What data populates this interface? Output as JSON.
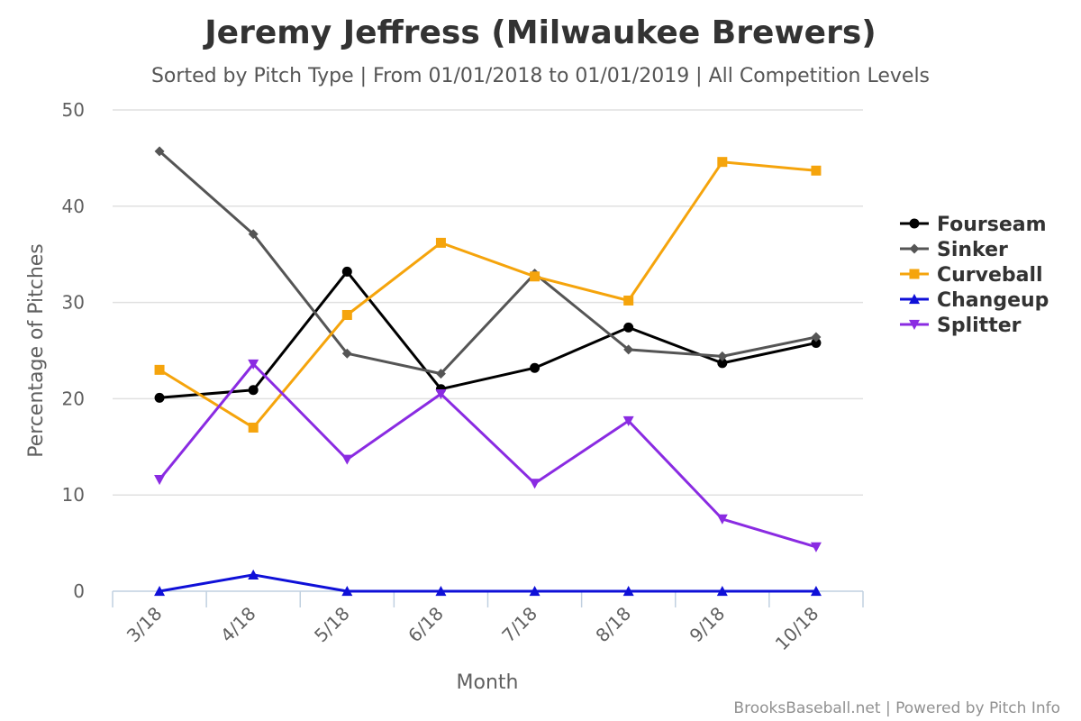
{
  "chart_data": {
    "type": "line",
    "title": "Jeremy Jeffress (Milwaukee Brewers)",
    "subtitle": "Sorted by Pitch Type | From 01/01/2018 to 01/01/2019 | All Competition Levels",
    "xlabel": "Month",
    "ylabel": "Percentage of Pitches",
    "categories": [
      "3/18",
      "4/18",
      "5/18",
      "6/18",
      "7/18",
      "8/18",
      "9/18",
      "10/18"
    ],
    "ylim": [
      0,
      50
    ],
    "yticks": [
      0,
      10,
      20,
      30,
      40,
      50
    ],
    "grid": true,
    "legend_position": "right",
    "series": [
      {
        "name": "Fourseam",
        "color": "#000000",
        "marker": "circle",
        "values": [
          20.1,
          20.9,
          33.2,
          21.0,
          23.2,
          27.4,
          23.7,
          25.8
        ]
      },
      {
        "name": "Sinker",
        "color": "#555555",
        "marker": "diamond",
        "values": [
          45.7,
          37.1,
          24.7,
          22.6,
          33.0,
          25.1,
          24.4,
          26.4
        ]
      },
      {
        "name": "Curveball",
        "color": "#f5a40c",
        "marker": "square",
        "values": [
          23.0,
          17.0,
          28.7,
          36.2,
          32.7,
          30.2,
          44.6,
          43.7
        ]
      },
      {
        "name": "Changeup",
        "color": "#0f10d8",
        "marker": "triangle",
        "values": [
          0.0,
          1.7,
          0.0,
          0.0,
          0.0,
          0.0,
          0.0,
          0.0
        ]
      },
      {
        "name": "Splitter",
        "color": "#8a2be2",
        "marker": "triangle-down",
        "values": [
          11.6,
          23.6,
          13.7,
          20.5,
          11.2,
          17.7,
          7.5,
          4.6
        ]
      }
    ]
  },
  "credits": "BrooksBaseball.net | Powered by Pitch Info"
}
